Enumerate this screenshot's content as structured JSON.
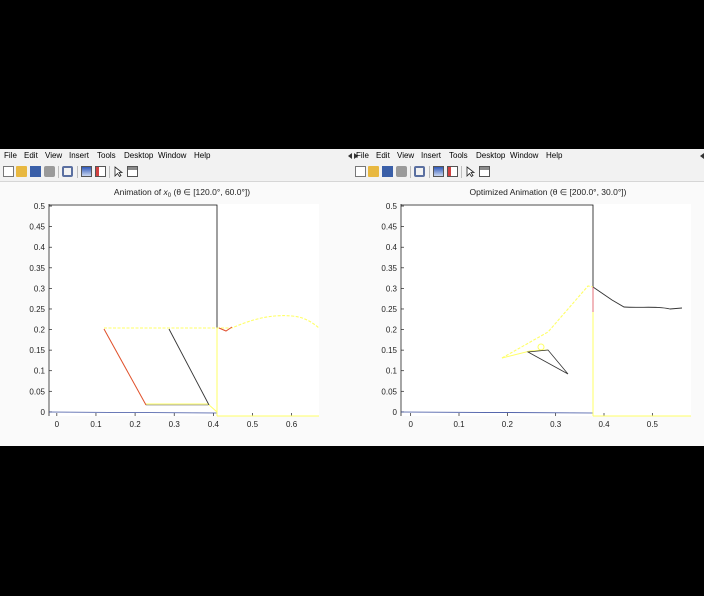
{
  "windows": [
    {
      "menu": [
        "File",
        "Edit",
        "View",
        "Insert",
        "Tools",
        "Desktop",
        "Window",
        "Help"
      ],
      "toolbar_icons": [
        "new-file-icon",
        "open-folder-icon",
        "save-icon",
        "print-icon",
        "zoom-icon",
        "insert-colorbar-icon",
        "insert-legend-icon",
        "pointer-icon",
        "property-editor-icon"
      ],
      "title": "Animation of x_0 (θ ∈ [120.0°, 60.0°])",
      "title_prefix": "Animation of ",
      "title_var": "x",
      "title_sub": "0",
      "title_suffix": " (θ ∈ [120.0°, 60.0°])",
      "axes": {
        "xlim": [
          -0.02,
          0.67
        ],
        "ylim": [
          -0.01,
          0.505
        ],
        "xticks": [
          "0",
          "0.1",
          "0.2",
          "0.3",
          "0.4",
          "0.5",
          "0.6"
        ],
        "yticks": [
          "0",
          "0.05",
          "0.1",
          "0.15",
          "0.2",
          "0.25",
          "0.3",
          "0.35",
          "0.4",
          "0.45",
          "0.5"
        ]
      }
    },
    {
      "menu": [
        "File",
        "Edit",
        "View",
        "Insert",
        "Tools",
        "Desktop",
        "Window",
        "Help"
      ],
      "toolbar_icons": [
        "new-file-icon",
        "open-folder-icon",
        "save-icon",
        "print-icon",
        "zoom-icon",
        "insert-colorbar-icon",
        "insert-legend-icon",
        "pointer-icon",
        "property-editor-icon"
      ],
      "title": "Optimized Animation (θ ∈ [200.0°, 30.0°])",
      "axes": {
        "xlim": [
          -0.02,
          0.58
        ],
        "ylim": [
          -0.01,
          0.505
        ],
        "xticks": [
          "0",
          "0.1",
          "0.2",
          "0.3",
          "0.4",
          "0.5"
        ],
        "yticks": [
          "0",
          "0.05",
          "0.1",
          "0.15",
          "0.2",
          "0.25",
          "0.3",
          "0.35",
          "0.4",
          "0.45",
          "0.5"
        ]
      }
    }
  ],
  "colors": {
    "frame": "#000000",
    "trace": "#ffff66",
    "arm_red": "#e0502a",
    "arm_dark": "#333333",
    "arm_pink": "#e0607a",
    "screen_bg": "#000000"
  }
}
